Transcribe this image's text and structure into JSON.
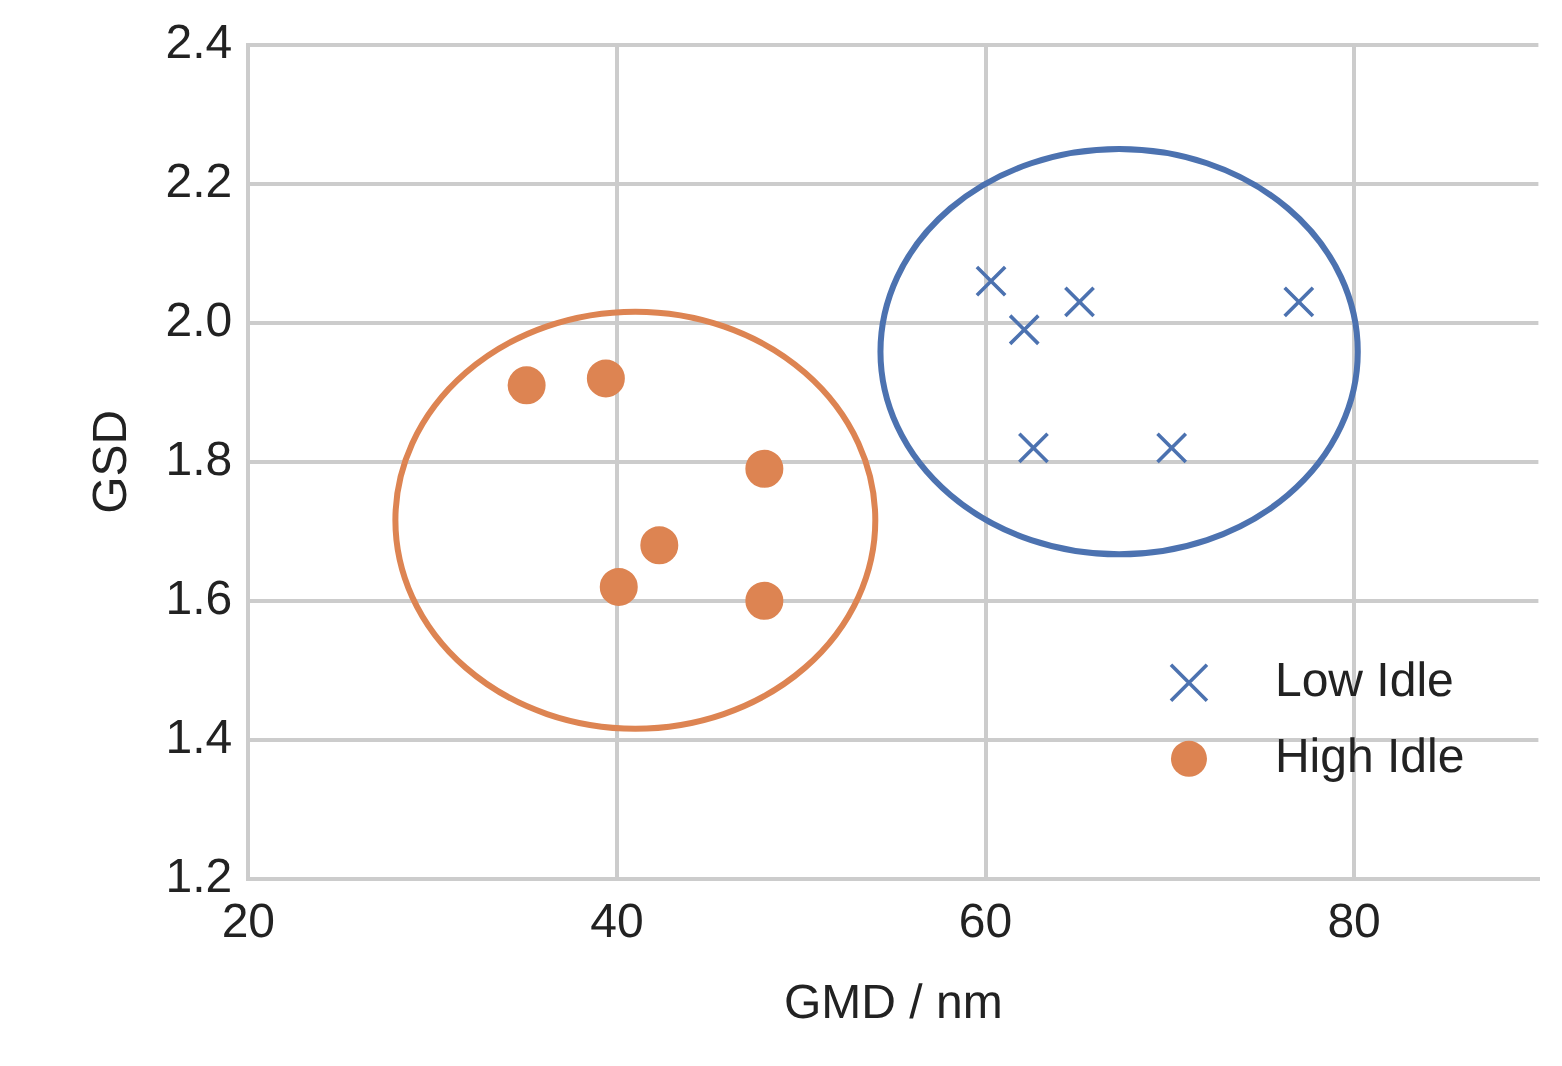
{
  "chart_data": {
    "type": "scatter",
    "xlabel": "GMD / nm",
    "ylabel": "GSD",
    "xlim": [
      20,
      90
    ],
    "xticks": [
      20,
      40,
      60,
      80
    ],
    "ylim": [
      1.2,
      2.4
    ],
    "yticks": [
      {
        "value": 1.2,
        "label": "1.2"
      },
      {
        "value": 1.4,
        "label": "1.4"
      },
      {
        "value": 1.6,
        "label": "1.6"
      },
      {
        "value": 1.8,
        "label": "1.8"
      },
      {
        "value": 2.0,
        "label": "2.0"
      },
      {
        "value": 2.2,
        "label": "2.2"
      },
      {
        "value": 2.4,
        "label": "2.4"
      }
    ],
    "grid": true,
    "legend": "bottom right",
    "series": [
      {
        "name": "Low Idle",
        "color": "#4c72b0",
        "marker": "cross",
        "x": [
          60.3,
          62.1,
          65.1,
          77.0,
          62.6,
          70.1
        ],
        "values": [
          2.06,
          1.99,
          2.03,
          2.03,
          1.82,
          1.82
        ]
      },
      {
        "name": "High Idle",
        "color": "#dd8452",
        "marker": "circle",
        "x": [
          35.1,
          39.4,
          48.0,
          42.3,
          40.1,
          48.0
        ],
        "values": [
          1.91,
          1.92,
          1.79,
          1.68,
          1.62,
          1.6
        ]
      }
    ]
  }
}
